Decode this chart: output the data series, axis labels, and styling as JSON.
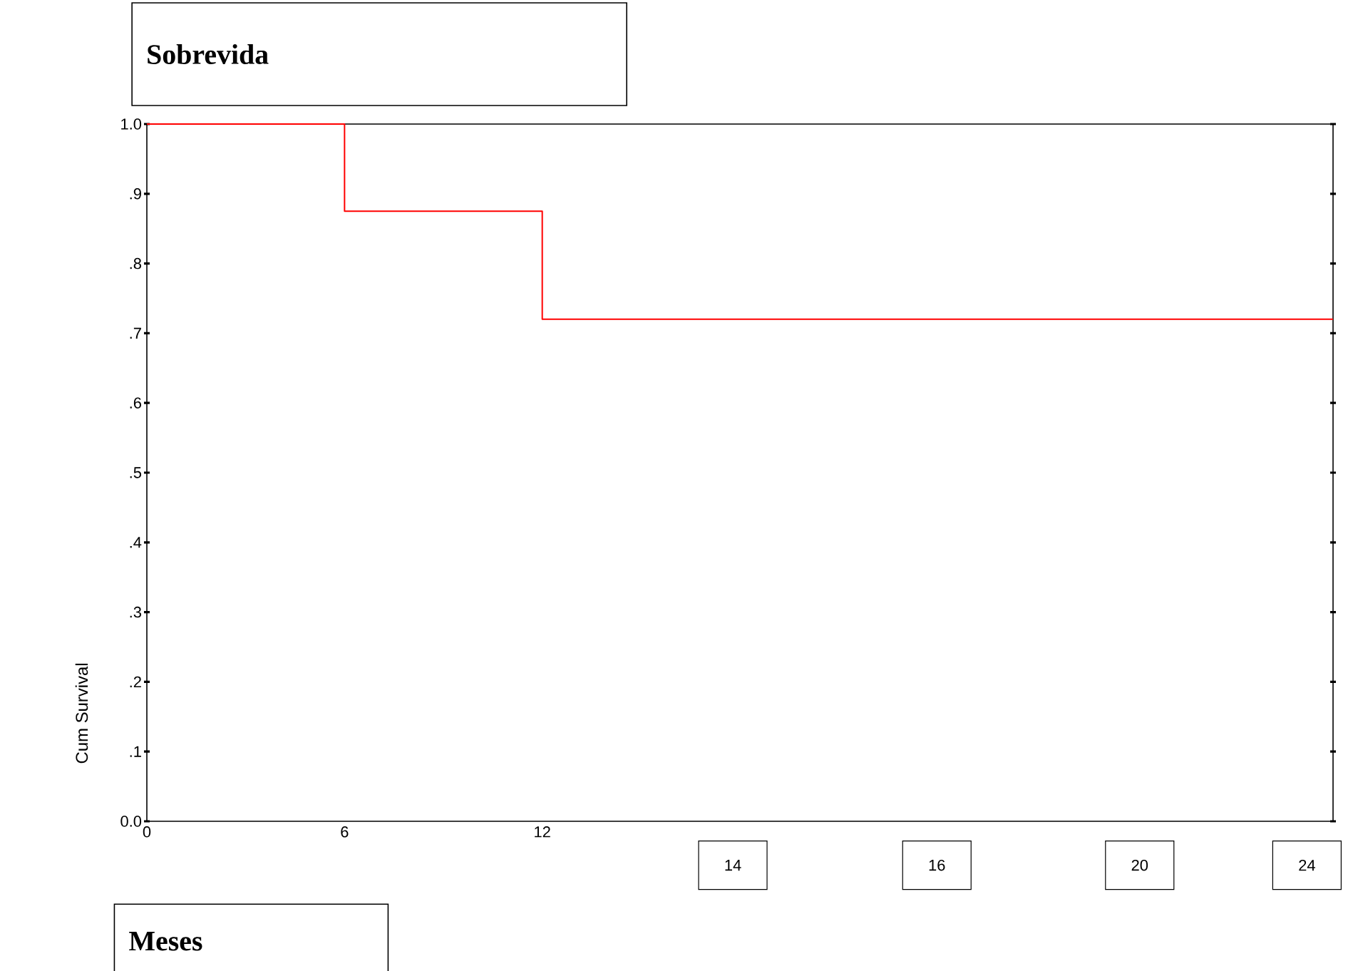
{
  "chart_data": {
    "type": "step",
    "title": "Sobrevida",
    "xlabel": "Meses",
    "ylabel": "Cum Survival",
    "x": [
      0,
      6,
      12,
      36
    ],
    "series": [
      {
        "color": "#ff0000",
        "values": [
          1.0,
          0.875,
          0.72,
          0.72
        ]
      }
    ],
    "xlim": [
      0,
      36
    ],
    "xticks": [
      0,
      6,
      12
    ],
    "annotations": [
      "14",
      "16",
      "20",
      "24"
    ],
    "ylim": [
      0,
      1
    ],
    "yticks": [
      {
        "value": 0,
        "label": "0.0"
      },
      {
        "value": 0.1,
        "label": ".1"
      },
      {
        "value": 0.2,
        "label": ".2"
      },
      {
        "value": 0.3,
        "label": ".3"
      },
      {
        "value": 0.4,
        "label": ".4"
      },
      {
        "value": 0.5,
        "label": ".5"
      },
      {
        "value": 0.6,
        "label": ".6"
      },
      {
        "value": 0.7,
        "label": ".7"
      },
      {
        "value": 0.8,
        "label": ".8"
      },
      {
        "value": 0.9,
        "label": ".9"
      },
      {
        "value": 1.0,
        "label": "1.0"
      }
    ]
  }
}
